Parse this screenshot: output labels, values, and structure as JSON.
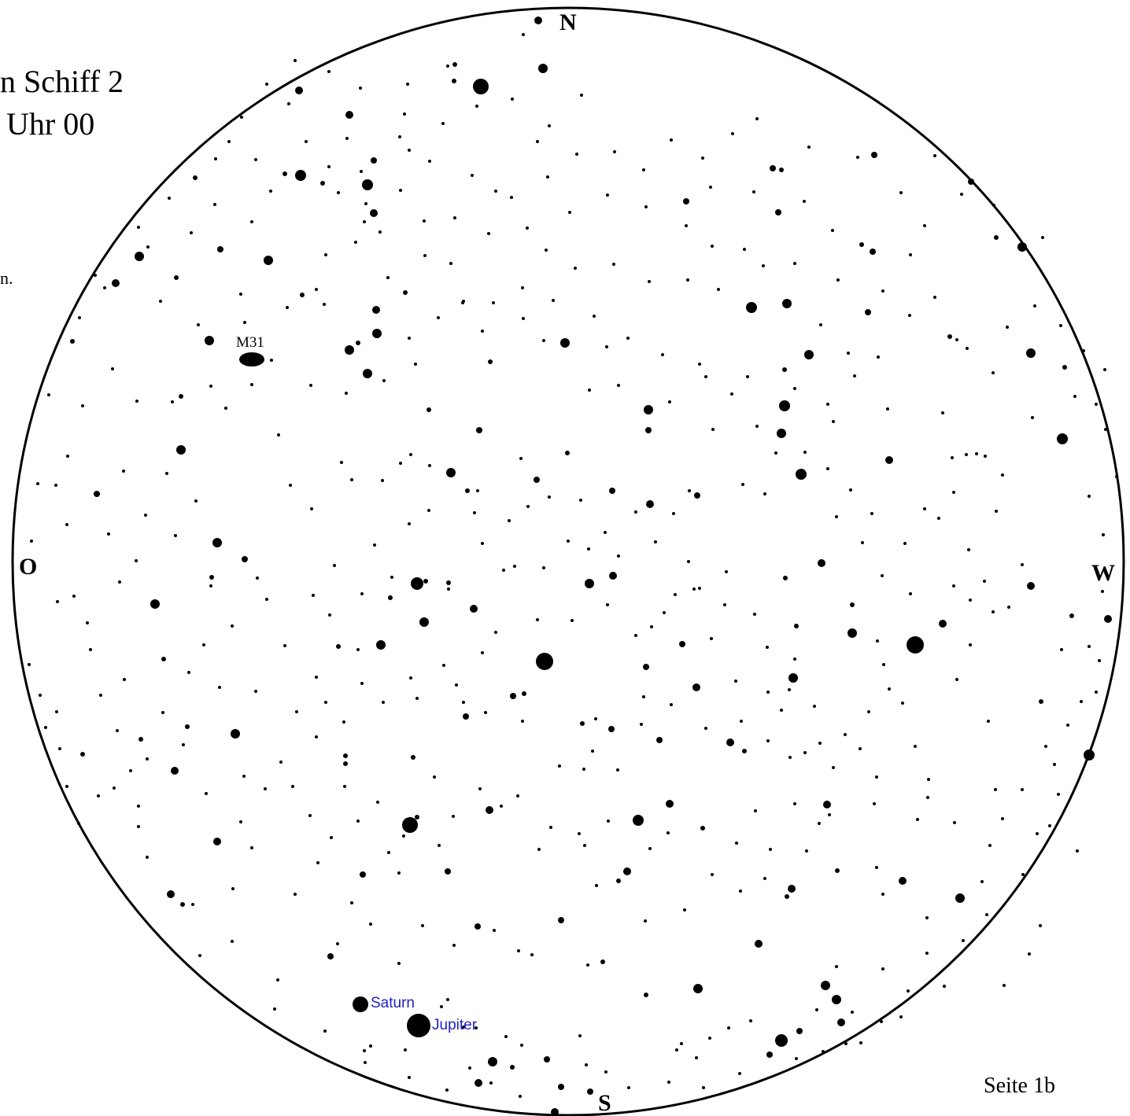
{
  "header": {
    "line1": "n Schiff 2",
    "line2": "Uhr 00",
    "line3": "n."
  },
  "cardinals": {
    "north": "N",
    "south": "S",
    "east": "O",
    "west": "W"
  },
  "objects": {
    "m31": "M31"
  },
  "planets": {
    "saturn": "Saturn",
    "jupiter": "Jupiter"
  },
  "footer": {
    "page": "Seite 1b"
  },
  "colors": {
    "stars": "#000000",
    "planet_labels": "#1f1fc8",
    "background": "#ffffff"
  }
}
